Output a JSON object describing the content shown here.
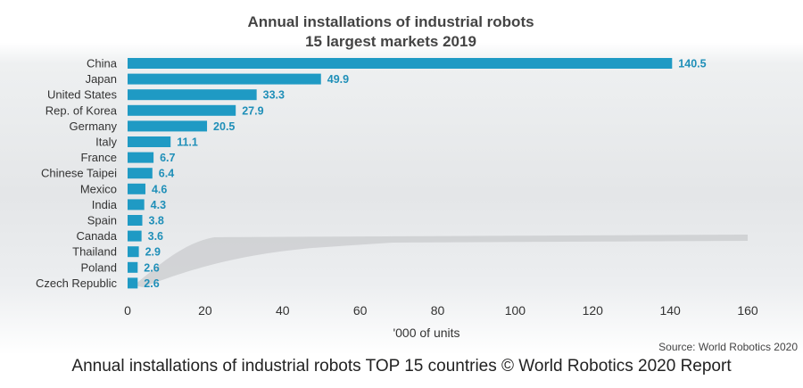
{
  "caption": "Annual installations of industrial robots TOP 15 countries © World Robotics 2020 Report",
  "source": "Source: World Robotics 2020",
  "colors": {
    "bar": "#1f9ac4",
    "value_label": "#1f8fb8"
  },
  "chart_data": {
    "type": "bar",
    "orientation": "horizontal",
    "title": "Annual installations of industrial robots",
    "subtitle": "15 largest markets 2019",
    "xlabel": "'000 of units",
    "ylabel": "",
    "xlim": [
      0,
      160
    ],
    "xticks": [
      "0",
      "20",
      "40",
      "60",
      "80",
      "100",
      "120",
      "140",
      "160"
    ],
    "grid": false,
    "categories": [
      "China",
      "Japan",
      "United States",
      "Rep. of Korea",
      "Germany",
      "Italy",
      "France",
      "Chinese Taipei",
      "Mexico",
      "India",
      "Spain",
      "Canada",
      "Thailand",
      "Poland",
      "Czech Republic"
    ],
    "values": [
      140.5,
      49.9,
      33.3,
      27.9,
      20.5,
      11.1,
      6.7,
      6.4,
      4.6,
      4.3,
      3.8,
      3.6,
      2.9,
      2.6,
      2.6
    ],
    "value_labels": [
      "140.5",
      "49.9",
      "33.3",
      "27.9",
      "20.5",
      "11.1",
      "6.7",
      "6.4",
      "4.6",
      "4.3",
      "3.8",
      "3.6",
      "2.9",
      "2.6",
      "2.6"
    ]
  }
}
